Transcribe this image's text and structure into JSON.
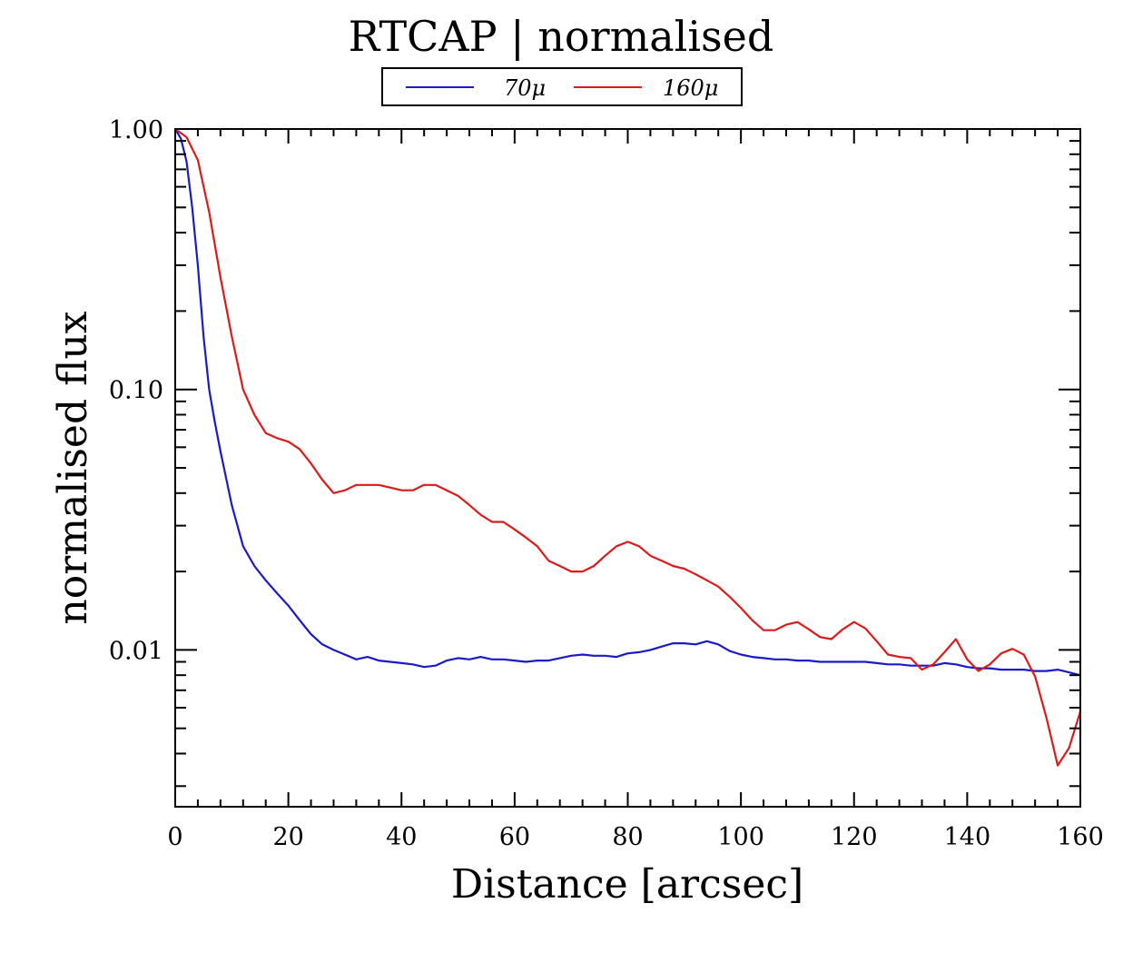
{
  "chart_data": {
    "type": "line",
    "title": "RTCAP | normalised",
    "xlabel": "Distance [arcsec]",
    "ylabel": "normalised flux",
    "yscale": "log",
    "xlim": [
      0,
      160
    ],
    "ylim": [
      0.0025,
      1.0
    ],
    "x_ticks": [
      0,
      20,
      40,
      60,
      80,
      100,
      120,
      140,
      160
    ],
    "x_tick_labels": [
      "0",
      "20",
      "40",
      "60",
      "80",
      "100",
      "120",
      "140",
      "160"
    ],
    "y_ticks": [
      0.01,
      0.1,
      1.0
    ],
    "y_tick_labels": [
      "0.01",
      "0.10",
      "1.00"
    ],
    "legend_position": "top-center",
    "colors": {
      "70mu": "#1a1ac8",
      "160mu": "#dd1a1a"
    },
    "series": [
      {
        "name": "70μ",
        "color": "#1a1ac8",
        "x": [
          0,
          1,
          2,
          3,
          4,
          5,
          6,
          7,
          8,
          10,
          12,
          14,
          16,
          18,
          20,
          22,
          24,
          26,
          28,
          30,
          32,
          34,
          36,
          38,
          40,
          42,
          44,
          46,
          48,
          50,
          52,
          54,
          56,
          58,
          60,
          62,
          64,
          66,
          68,
          70,
          72,
          74,
          76,
          78,
          80,
          82,
          84,
          86,
          88,
          90,
          92,
          94,
          96,
          98,
          100,
          102,
          104,
          106,
          108,
          110,
          112,
          114,
          116,
          118,
          120,
          122,
          124,
          126,
          128,
          130,
          132,
          134,
          136,
          138,
          140,
          142,
          144,
          146,
          148,
          150,
          152,
          154,
          156,
          158,
          160
        ],
        "values": [
          1.0,
          0.92,
          0.75,
          0.5,
          0.3,
          0.16,
          0.1,
          0.075,
          0.058,
          0.036,
          0.025,
          0.021,
          0.0185,
          0.0165,
          0.0148,
          0.013,
          0.0115,
          0.0105,
          0.01,
          0.0096,
          0.0092,
          0.0094,
          0.0091,
          0.009,
          0.0089,
          0.0088,
          0.0086,
          0.0087,
          0.0091,
          0.0093,
          0.0092,
          0.0094,
          0.0092,
          0.0092,
          0.0091,
          0.009,
          0.0091,
          0.0091,
          0.0093,
          0.0095,
          0.0096,
          0.0095,
          0.0095,
          0.0094,
          0.0097,
          0.0098,
          0.01,
          0.0103,
          0.0106,
          0.0106,
          0.0105,
          0.0108,
          0.0105,
          0.0099,
          0.0096,
          0.0094,
          0.0093,
          0.0092,
          0.0092,
          0.0091,
          0.0091,
          0.009,
          0.009,
          0.009,
          0.009,
          0.009,
          0.0089,
          0.0088,
          0.0088,
          0.0087,
          0.0087,
          0.0087,
          0.0089,
          0.0088,
          0.0086,
          0.0085,
          0.0085,
          0.0084,
          0.0084,
          0.0084,
          0.0083,
          0.0083,
          0.0084,
          0.0082,
          0.008
        ]
      },
      {
        "name": "160μ",
        "color": "#dd1a1a",
        "x": [
          0,
          2,
          4,
          6,
          8,
          10,
          12,
          14,
          16,
          18,
          20,
          22,
          24,
          26,
          28,
          30,
          32,
          34,
          36,
          38,
          40,
          42,
          44,
          46,
          48,
          50,
          52,
          54,
          56,
          58,
          60,
          62,
          64,
          66,
          68,
          70,
          72,
          74,
          76,
          78,
          80,
          82,
          84,
          86,
          88,
          90,
          92,
          94,
          96,
          98,
          100,
          102,
          104,
          106,
          108,
          110,
          112,
          114,
          116,
          118,
          120,
          122,
          124,
          126,
          128,
          130,
          132,
          134,
          136,
          138,
          140,
          142,
          144,
          146,
          148,
          150,
          152,
          154,
          156,
          158,
          160
        ],
        "values": [
          1.0,
          0.93,
          0.76,
          0.48,
          0.27,
          0.16,
          0.1,
          0.08,
          0.068,
          0.065,
          0.063,
          0.059,
          0.052,
          0.045,
          0.04,
          0.041,
          0.043,
          0.043,
          0.043,
          0.042,
          0.041,
          0.041,
          0.043,
          0.043,
          0.041,
          0.039,
          0.036,
          0.033,
          0.031,
          0.031,
          0.029,
          0.027,
          0.025,
          0.022,
          0.021,
          0.02,
          0.02,
          0.021,
          0.023,
          0.025,
          0.026,
          0.025,
          0.023,
          0.022,
          0.021,
          0.0205,
          0.0195,
          0.0185,
          0.0175,
          0.016,
          0.0145,
          0.013,
          0.0119,
          0.0119,
          0.0125,
          0.0128,
          0.012,
          0.0112,
          0.011,
          0.012,
          0.0128,
          0.0121,
          0.0108,
          0.0096,
          0.0094,
          0.0093,
          0.0084,
          0.0088,
          0.0098,
          0.011,
          0.0092,
          0.0083,
          0.0088,
          0.0097,
          0.0101,
          0.0096,
          0.0079,
          0.0055,
          0.0036,
          0.0042,
          0.0058
        ]
      }
    ]
  }
}
